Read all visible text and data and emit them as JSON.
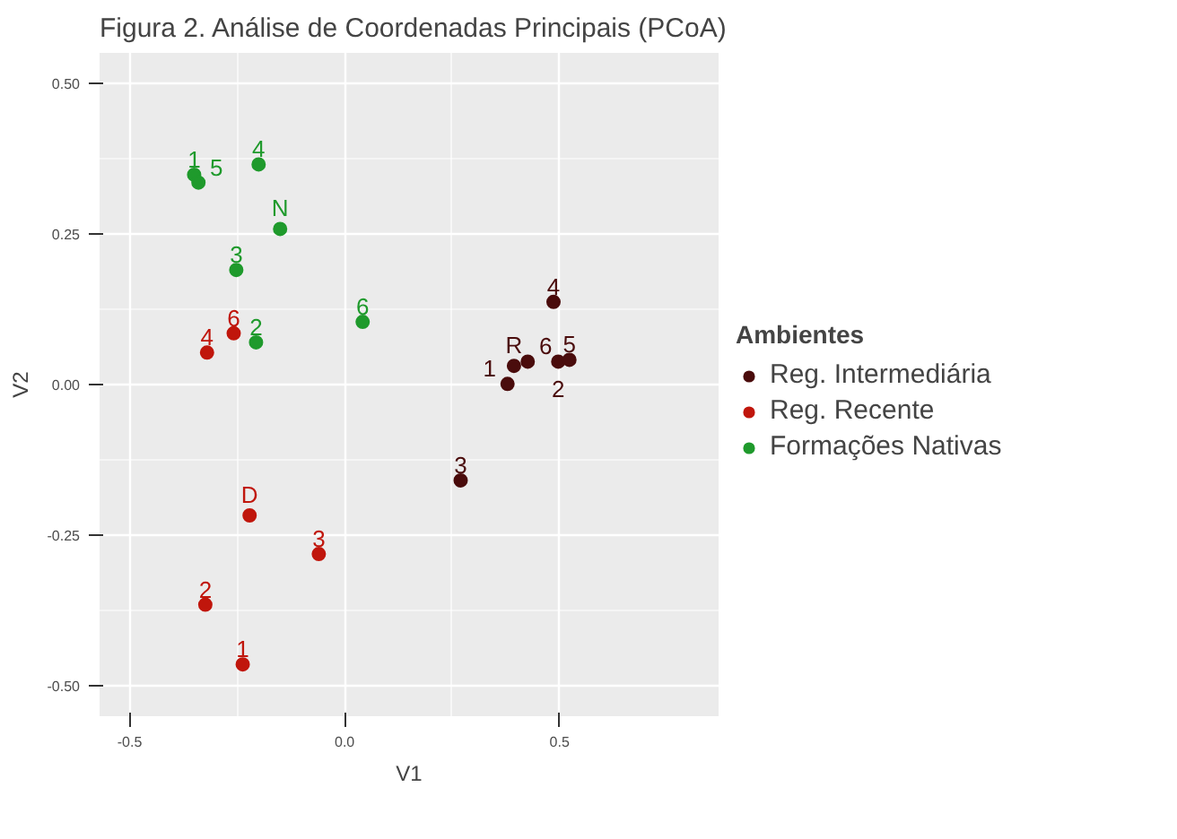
{
  "chart_data": {
    "type": "scatter",
    "title": "Figura 2. Análise de Coordenadas Principais (PCoA)",
    "xlabel": "V1",
    "ylabel": "V2",
    "legend_title": "Ambientes",
    "legend": "right",
    "grid": true,
    "marker": "circle",
    "xlim": [
      -0.57,
      0.87
    ],
    "ylim": [
      -0.55,
      0.55
    ],
    "xticks": [
      {
        "value": -0.5,
        "label": "-0.5"
      },
      {
        "value": 0,
        "label": "0.0"
      },
      {
        "value": 0.5,
        "label": "0.5"
      }
    ],
    "yticks": [
      {
        "value": -0.5,
        "label": "-0.50"
      },
      {
        "value": -0.25,
        "label": "-0.25"
      },
      {
        "value": 0,
        "label": "0.00"
      },
      {
        "value": 0.25,
        "label": "0.25"
      },
      {
        "value": 0.5,
        "label": "0.50"
      }
    ],
    "series": [
      {
        "name": "Reg. Intermediária",
        "color": "#4a0c0c",
        "x": [
          0.27,
          0.486,
          0.379,
          0.394,
          0.426,
          0.497,
          0.523
        ],
        "values": [
          -0.159,
          0.137,
          0.001,
          0.031,
          0.038,
          0.038,
          0.041
        ]
      },
      {
        "name": "Reg. Recente",
        "color": "#c0160c",
        "x": [
          -0.32,
          -0.258,
          -0.221,
          -0.06,
          -0.324,
          -0.237
        ],
        "values": [
          0.053,
          0.085,
          -0.217,
          -0.281,
          -0.365,
          -0.464
        ]
      },
      {
        "name": "Formações Nativas",
        "color": "#1f9a2c",
        "x": [
          -0.35,
          -0.34,
          -0.2,
          -0.15,
          -0.252,
          -0.206,
          0.042
        ],
        "values": [
          0.348,
          0.335,
          0.365,
          0.258,
          0.19,
          0.07,
          0.104
        ]
      }
    ],
    "annotations": [
      {
        "text": "3",
        "x": 0.27,
        "y": -0.159
      },
      {
        "text": "4",
        "x": 0.486,
        "y": 0.137
      },
      {
        "text": "1",
        "x": 0.379,
        "y": 0.001
      },
      {
        "text": "R",
        "x": 0.394,
        "y": 0.031
      },
      {
        "text": "6",
        "x": 0.426,
        "y": 0.038
      },
      {
        "text": "2",
        "x": 0.497,
        "y": 0.038
      },
      {
        "text": "5",
        "x": 0.523,
        "y": 0.041
      },
      {
        "text": "4",
        "x": -0.32,
        "y": 0.053
      },
      {
        "text": "6",
        "x": -0.258,
        "y": 0.085
      },
      {
        "text": "D",
        "x": -0.221,
        "y": -0.217
      },
      {
        "text": "3",
        "x": -0.06,
        "y": -0.281
      },
      {
        "text": "2",
        "x": -0.324,
        "y": -0.365
      },
      {
        "text": "1",
        "x": -0.237,
        "y": -0.464
      },
      {
        "text": "1",
        "x": -0.35,
        "y": 0.348
      },
      {
        "text": "5",
        "x": -0.34,
        "y": 0.335
      },
      {
        "text": "4",
        "x": -0.2,
        "y": 0.365
      },
      {
        "text": "N",
        "x": -0.15,
        "y": 0.258
      },
      {
        "text": "3",
        "x": -0.252,
        "y": 0.19
      },
      {
        "text": "2",
        "x": -0.206,
        "y": 0.07
      },
      {
        "text": "6",
        "x": 0.042,
        "y": 0.104
      }
    ]
  }
}
